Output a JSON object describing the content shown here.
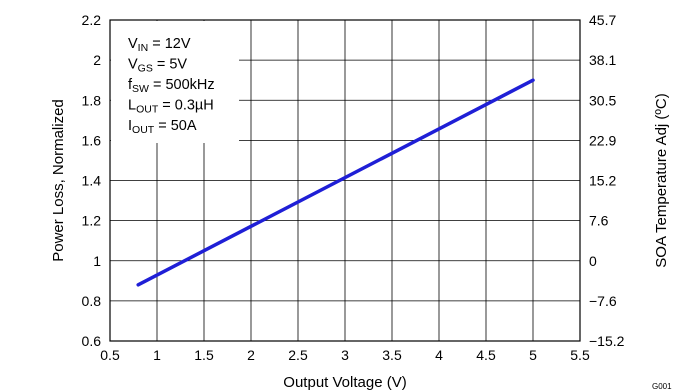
{
  "chart_data": {
    "type": "line",
    "xlabel": "Output Voltage (V)",
    "ylabel": "Power Loss, Normalized",
    "y2label": "SOA Temperature Adj (ºC)",
    "xlim": [
      0.5,
      5.5
    ],
    "ylim": [
      0.6,
      2.2
    ],
    "x_ticks": [
      "0.5",
      "1",
      "1.5",
      "2",
      "2.5",
      "3",
      "3.5",
      "4",
      "4.5",
      "5",
      "5.5"
    ],
    "y_ticks": [
      "0.6",
      "0.8",
      "1",
      "1.2",
      "1.4",
      "1.6",
      "1.8",
      "2",
      "2.2"
    ],
    "y2_ticks": [
      "−15.2",
      "−7.6",
      "0",
      "7.6",
      "15.2",
      "22.9",
      "30.5",
      "38.1",
      "45.7"
    ],
    "grid": true,
    "line_color": "#1f1fd6",
    "series": [
      {
        "x": [
          0.8,
          5.0
        ],
        "y": [
          0.88,
          1.9
        ]
      }
    ],
    "conditions": [
      {
        "main": "V",
        "sub": "IN",
        "rest": " = 12V"
      },
      {
        "main": "V",
        "sub": "GS",
        "rest": " = 5V"
      },
      {
        "main": "f",
        "sub": "SW",
        "rest": " = 500kHz"
      },
      {
        "main": "L",
        "sub": "OUT",
        "rest": " = 0.3µH"
      },
      {
        "main": "I",
        "sub": "OUT",
        "rest": " = 50A"
      }
    ],
    "figure_id": "G001"
  }
}
